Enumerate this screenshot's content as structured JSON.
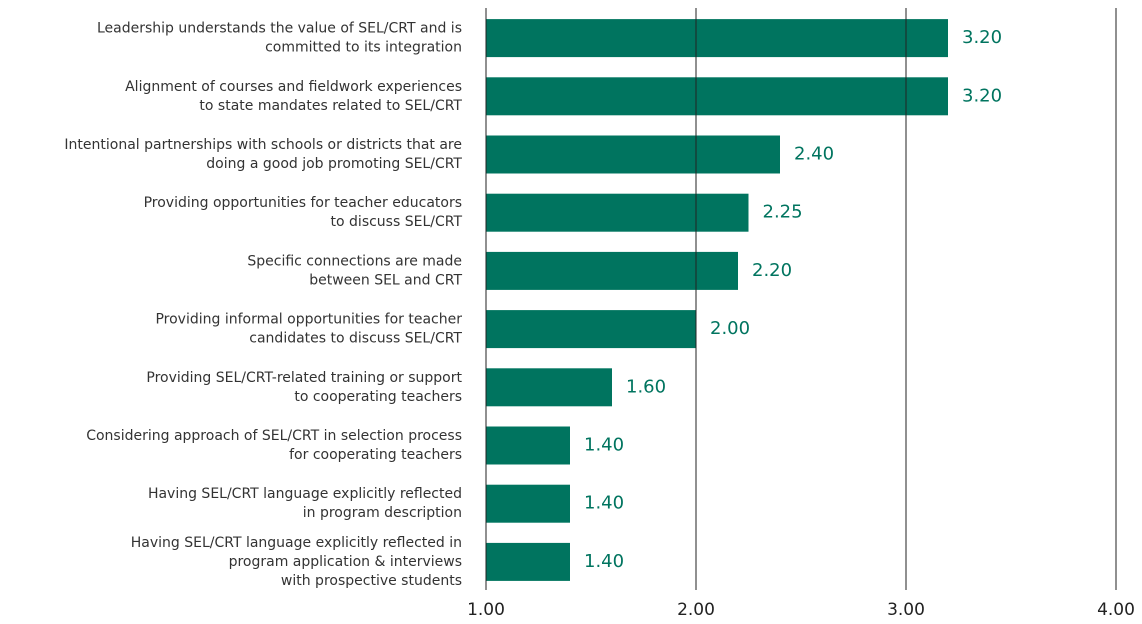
{
  "chart_data": {
    "type": "barh",
    "categories": [
      [
        "Leadership understands the value of SEL/CRT and is",
        "committed to its integration"
      ],
      [
        "Alignment of courses and fieldwork experiences",
        "to state mandates related to SEL/CRT"
      ],
      [
        "Intentional partnerships with schools or districts that are",
        "doing a good job promoting SEL/CRT"
      ],
      [
        "Providing opportunities for teacher educators",
        "to discuss SEL/CRT"
      ],
      [
        "Specific connections are made",
        "between SEL and CRT"
      ],
      [
        "Providing informal opportunities for teacher",
        "candidates to discuss SEL/CRT"
      ],
      [
        "Providing SEL/CRT-related training or support",
        "to cooperating teachers"
      ],
      [
        "Considering approach of SEL/CRT in selection process",
        "for cooperating teachers"
      ],
      [
        "Having SEL/CRT language explicitly reflected",
        "in program description"
      ],
      [
        "Having SEL/CRT language explicitly reflected in",
        "program application & interviews",
        "with prospective students"
      ]
    ],
    "values": [
      3.2,
      3.2,
      2.4,
      2.25,
      2.2,
      2.0,
      1.6,
      1.4,
      1.4,
      1.4
    ],
    "value_labels": [
      "3.20",
      "3.20",
      "2.40",
      "2.25",
      "2.20",
      "2.00",
      "1.60",
      "1.40",
      "1.40",
      "1.40"
    ],
    "color": "#00745f",
    "xlim": [
      1,
      4
    ],
    "xticks": [
      {
        "value": 1,
        "label": "1.00"
      },
      {
        "value": 2,
        "label": "2.00"
      },
      {
        "value": 3,
        "label": "3.00"
      },
      {
        "value": 4,
        "label": "4.00"
      }
    ],
    "grid": true
  }
}
